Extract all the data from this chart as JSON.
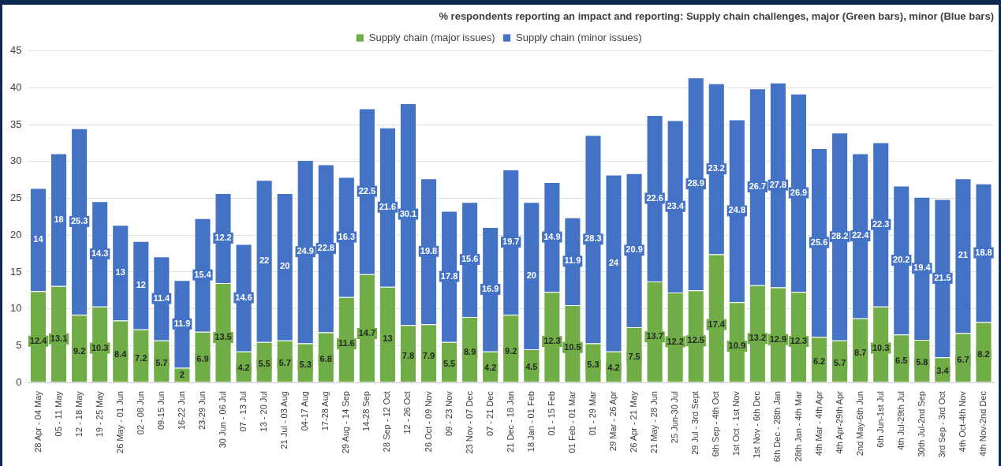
{
  "chart_data": {
    "type": "bar",
    "title": "% respondents reporting an impact and reporting: Supply chain challenges, major (Green bars), minor (Blue bars)",
    "categories": [
      "28 Apr - 04 May",
      "05 - 11 May",
      "12 - 18 May",
      "19 - 25 May",
      "26 May - 01 Jun",
      "02 - 08 Jun",
      "09-15 Jun",
      "16-22 Jun",
      "23-29 Jun",
      "30 Jun - 06 Jul",
      "07 - 13 Jul",
      "13 - 20 Jul",
      "21 Jul - 03 Aug",
      "04-17 Aug",
      "17-28 Aug",
      "29 Aug - 14 Sep",
      "14-28 Sep",
      "28 Sep - 12 Oct",
      "12 - 26 Oct",
      "26 Oct - 09 Nov",
      "09 - 23 Nov",
      "23 Nov - 07 Dec",
      "07 - 21 Dec",
      "21 Dec - 18 Jan",
      "18 Jan - 01 Feb",
      "01 - 15 Feb",
      "01 Feb - 01 Mar",
      "01 - 29 Mar",
      "29 Mar - 26 Apr",
      "26 Apr - 21 May",
      "21 May - 28 Jun",
      "25 Jun-30 Jul",
      "29 Jul - 3rd Sept",
      "6th Sep - 4th Oct",
      "1st Oct - 1st Nov",
      "1st Nov - 6th Dec",
      "6th Dec - 28th Jan",
      "28th Jan - 4th Mar",
      "4th Mar - 4th Apr",
      "4th Apr-29th Apr",
      "2nd May-6th Jun",
      "6th Jun-1st Jul",
      "4th Jul-29th Jul",
      "30th Jul-2nd Sep",
      "3rd Sep - 3rd Oct",
      "4th Oct-4th Nov",
      "4th Nov-2nd Dec"
    ],
    "series": [
      {
        "name": "Supply chain (major issues)",
        "color": "#70ad47",
        "values": [
          12.4,
          13.1,
          9.2,
          10.3,
          8.4,
          7.2,
          5.7,
          2,
          6.9,
          13.5,
          4.2,
          5.5,
          5.7,
          5.3,
          6.8,
          11.6,
          14.7,
          13,
          7.8,
          7.9,
          5.5,
          8.9,
          4.2,
          9.2,
          4.5,
          12.3,
          10.5,
          5.3,
          4.2,
          7.5,
          13.7,
          12.2,
          12.5,
          17.4,
          10.9,
          13.2,
          12.9,
          12.3,
          6.2,
          5.7,
          8.7,
          10.3,
          6.5,
          5.8,
          3.4,
          6.7,
          8.2
        ]
      },
      {
        "name": "Supply chain (minor issues)",
        "color": "#4472c4",
        "values": [
          14,
          18,
          25.3,
          14.3,
          13,
          12,
          11.4,
          11.9,
          15.4,
          12.2,
          14.6,
          22.0,
          20.0,
          24.9,
          22.8,
          16.3,
          22.5,
          21.6,
          30.1,
          19.8,
          17.8,
          15.6,
          16.9,
          19.7,
          20,
          14.9,
          11.9,
          28.3,
          24,
          20.9,
          22.6,
          23.4,
          28.9,
          23.2,
          24.8,
          26.7,
          27.8,
          26.9,
          25.6,
          28.2,
          22.4,
          22.3,
          20.2,
          19.4,
          21.5,
          21,
          18.8
        ]
      }
    ],
    "stacked": true,
    "data_labels": true,
    "ylim": [
      0,
      45
    ],
    "yticks": [
      0,
      5,
      10,
      15,
      20,
      25,
      30,
      35,
      40,
      45
    ],
    "grid": "y",
    "legend": "top"
  }
}
